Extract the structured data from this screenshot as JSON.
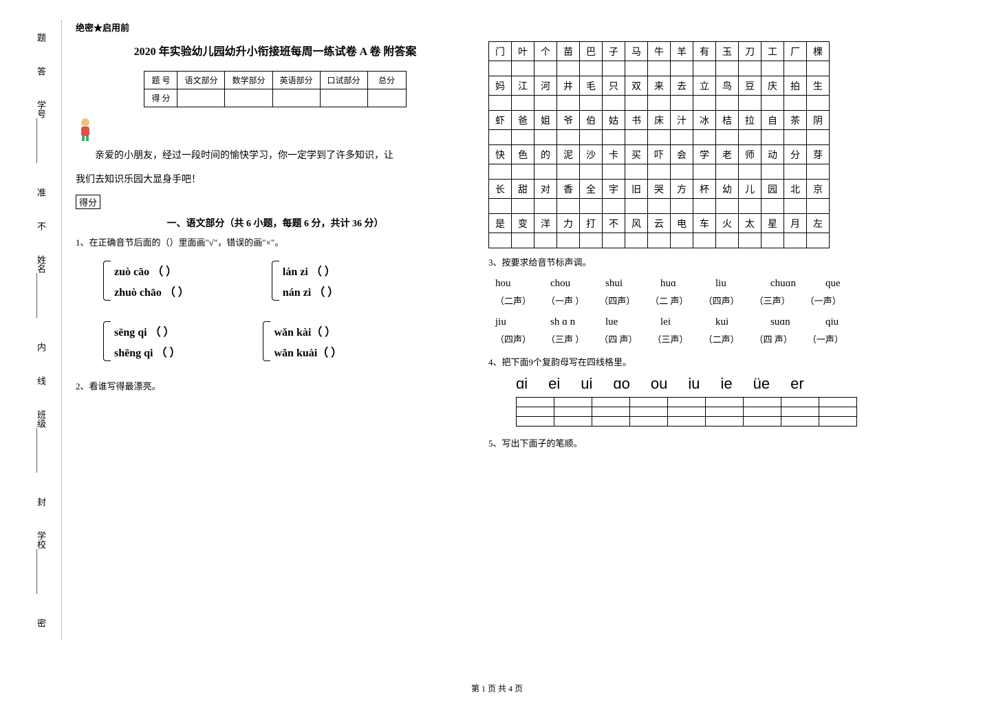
{
  "sidebar": {
    "items": [
      "学号",
      "姓名",
      "班级",
      "学校"
    ],
    "seals": [
      "题",
      "答",
      "准",
      "不",
      "内",
      "线",
      "封",
      "密"
    ]
  },
  "header": {
    "confidential": "绝密★启用前",
    "title": "2020 年实验幼儿园幼升小衔接班每周一练试卷 A 卷 附答案"
  },
  "scoreTable": {
    "row1": [
      "题  号",
      "语文部分",
      "数学部分",
      "英语部分",
      "口试部分",
      "总分"
    ],
    "row2Label": "得  分"
  },
  "intro": {
    "line1": "亲爱的小朋友，经过一段时间的愉快学习，你一定学到了许多知识，让",
    "line2": "我们去知识乐园大显身手吧！",
    "defen": "得分"
  },
  "section1": {
    "head": "一、语文部分（共 6 小题，每题 6 分，共计 36 分）",
    "q1": "1、在正确音节后面的（）里面画\"√\"，错误的画\"×\"。",
    "pairs": [
      {
        "a": "zuò  cāo （  ）",
        "b": "lán  zi （  ）"
      },
      {
        "a": "zhuò  chāo （  ）",
        "b": "nán  zi （  ）"
      },
      {
        "a": "sēng  qi  （  ）",
        "b": "wǎn  kài（  ）"
      },
      {
        "a": "shēng  qi  （  ）",
        "b": "wǎn  kuài（  ）"
      }
    ],
    "q2": "2、看谁写得最漂亮。"
  },
  "charGrid": {
    "rows": [
      [
        "门",
        "叶",
        "个",
        "苗",
        "巴",
        "子",
        "马",
        "牛",
        "羊",
        "有",
        "玉",
        "刀",
        "工",
        "厂",
        "棵"
      ],
      [
        "妈",
        "江",
        "河",
        "井",
        "毛",
        "只",
        "双",
        "来",
        "去",
        "立",
        "鸟",
        "豆",
        "庆",
        "拍",
        "生"
      ],
      [
        "虾",
        "爸",
        "姐",
        "爷",
        "伯",
        "姑",
        "书",
        "床",
        "汁",
        "冰",
        "桔",
        "拉",
        "自",
        "茶",
        "阴"
      ],
      [
        "快",
        "色",
        "的",
        "泥",
        "沙",
        "卡",
        "买",
        "吓",
        "会",
        "学",
        "老",
        "师",
        "动",
        "分",
        "芽"
      ],
      [
        "长",
        "甜",
        "对",
        "香",
        "全",
        "宇",
        "旧",
        "哭",
        "方",
        "杯",
        "幼",
        "儿",
        "园",
        "北",
        "京"
      ],
      [
        "是",
        "变",
        "洋",
        "力",
        "打",
        "不",
        "风",
        "云",
        "电",
        "车",
        "火",
        "太",
        "星",
        "月",
        "左"
      ]
    ]
  },
  "q3": {
    "label": "3、按要求给音节标声调。",
    "row1": [
      "hou",
      "chou",
      "shui",
      "huɑ",
      "liu",
      "chuɑn",
      "que"
    ],
    "row1t": [
      "（二声）",
      "（一声 ）",
      "（四声）",
      "（二 声）",
      "（四声）",
      "（三声）",
      "（一声）"
    ],
    "row2": [
      "jiu",
      "sh ɑ n",
      "lue",
      "lei",
      "kui",
      "suɑn",
      "qiu"
    ],
    "row2t": [
      "（四声）",
      "（三声 ）",
      "（四 声）",
      "（三声）",
      "（二声）",
      "（四 声）",
      "（一声）"
    ]
  },
  "q4": {
    "label": "4、把下面9个复韵母写在四线格里。",
    "items": [
      "ɑi",
      "ei",
      "ui",
      "ɑo",
      "ou",
      "iu",
      "ie",
      "üe",
      "er"
    ]
  },
  "q5": {
    "label": "5、写出下面子的笔顺。"
  },
  "footer": "第 1 页 共 4 页",
  "colors": {
    "text": "#000000",
    "bg": "#ffffff",
    "dotBorder": "#888888"
  }
}
